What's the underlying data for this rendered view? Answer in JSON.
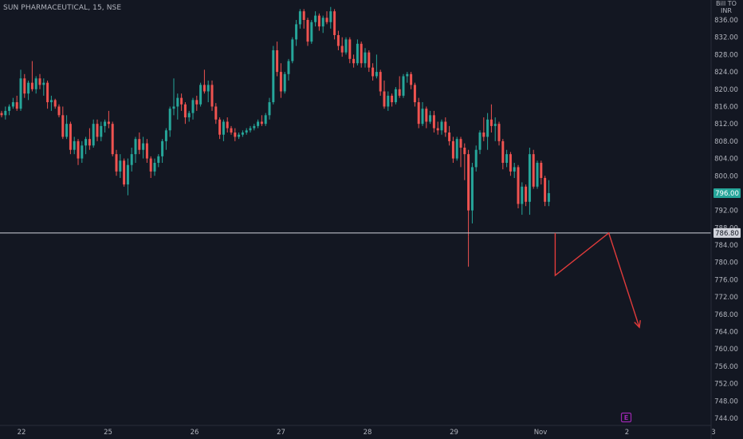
{
  "header": {
    "symbol_title": "SUN PHARMACEUTICAL, 15, NSE",
    "currency_top": "Bill TO",
    "currency": "INR"
  },
  "colors": {
    "background": "#131722",
    "up": "#26a69a",
    "down": "#ef5350",
    "axis_text": "#b2b5be",
    "horizontal_line": "#d1d4dc",
    "drawing": "#e03b3b",
    "badge": "#9c27b0"
  },
  "events_badge": "E",
  "chart_data": {
    "type": "candlestick",
    "title": "SUN PHARMACEUTICAL, 15, NSE",
    "ylabel": "INR",
    "ylim": [
      743,
      839
    ],
    "y_ticks": [
      836,
      832,
      828,
      824,
      820,
      816,
      812,
      808,
      804,
      800,
      796,
      792,
      788,
      784,
      780,
      776,
      772,
      768,
      764,
      760,
      756,
      752,
      748,
      744
    ],
    "x_tick_labels": [
      "22",
      "25",
      "26",
      "27",
      "28",
      "29",
      "Nov",
      "2",
      "3"
    ],
    "x_tick_positions": [
      0,
      25,
      50,
      75,
      100,
      125,
      150,
      175,
      200
    ],
    "last_price": "796.00",
    "horizontal_line_price": "786.80",
    "grid": false,
    "candles": [
      [
        814.5,
        815,
        813.5,
        814
      ],
      [
        814,
        816,
        813,
        815
      ],
      [
        815,
        816.5,
        814,
        816
      ],
      [
        816,
        818,
        815.5,
        817
      ],
      [
        817,
        818.5,
        815,
        815.5
      ],
      [
        815.5,
        824.5,
        815,
        822.5
      ],
      [
        822.5,
        823.5,
        818,
        819
      ],
      [
        819,
        822,
        817.5,
        821.5
      ],
      [
        821.5,
        826.5,
        819.5,
        820
      ],
      [
        820,
        823,
        819,
        822.5
      ],
      [
        822.5,
        823.5,
        820,
        821
      ],
      [
        821,
        822.5,
        818.5,
        821.5
      ],
      [
        821.5,
        822,
        815.5,
        817
      ],
      [
        817,
        818.5,
        815,
        817.5
      ],
      [
        817.5,
        817.8,
        815.5,
        816
      ],
      [
        816,
        816.5,
        813.5,
        814
      ],
      [
        814,
        816,
        808.5,
        809
      ],
      [
        809,
        814,
        808.5,
        812
      ],
      [
        812,
        812.5,
        805,
        806
      ],
      [
        806,
        809,
        805,
        808
      ],
      [
        808,
        808.5,
        802.5,
        804
      ],
      [
        804,
        808,
        803,
        807
      ],
      [
        807,
        809,
        805,
        808.5
      ],
      [
        808.5,
        811,
        806,
        807
      ],
      [
        807,
        813,
        806.5,
        812
      ],
      [
        812,
        813,
        808,
        809
      ],
      [
        809,
        812.5,
        808,
        811.5
      ],
      [
        811.5,
        813,
        810,
        812.5
      ],
      [
        812.5,
        815,
        811,
        812
      ],
      [
        812,
        812.5,
        804.5,
        805
      ],
      [
        805,
        806,
        800,
        801
      ],
      [
        801,
        805,
        799.5,
        803.5
      ],
      [
        803.5,
        804,
        797.5,
        798
      ],
      [
        798,
        804,
        795.5,
        802.5
      ],
      [
        802.5,
        806.5,
        801,
        805
      ],
      [
        805,
        809,
        803,
        808.5
      ],
      [
        808.5,
        810,
        805,
        806
      ],
      [
        806,
        809,
        804,
        807.5
      ],
      [
        807.5,
        808.5,
        803,
        804
      ],
      [
        804,
        804.5,
        799.5,
        801
      ],
      [
        801,
        804,
        800,
        803
      ],
      [
        803,
        805,
        802,
        804.5
      ],
      [
        804.5,
        808.5,
        803,
        808
      ],
      [
        808,
        811,
        806,
        810.5
      ],
      [
        810.5,
        816,
        809,
        815.5
      ],
      [
        815.5,
        822.5,
        814,
        816
      ],
      [
        816,
        819,
        813,
        818
      ],
      [
        818,
        819,
        815,
        816.5
      ],
      [
        816.5,
        817,
        812,
        813.5
      ],
      [
        813.5,
        815,
        812.5,
        814.5
      ],
      [
        814.5,
        818,
        813,
        817.5
      ],
      [
        817.5,
        818.5,
        815,
        816.5
      ],
      [
        816.5,
        821.5,
        816,
        821
      ],
      [
        821,
        824.5,
        819,
        819.5
      ],
      [
        819.5,
        822,
        817,
        821
      ],
      [
        821,
        822,
        815,
        816
      ],
      [
        816,
        816.8,
        812,
        813
      ],
      [
        813,
        813.5,
        808.5,
        809.5
      ],
      [
        809.5,
        813,
        808,
        812.5
      ],
      [
        812.5,
        813.5,
        810,
        811
      ],
      [
        811,
        811.5,
        809.5,
        810
      ],
      [
        810,
        811,
        808,
        809
      ],
      [
        809,
        810,
        808.5,
        809.5
      ],
      [
        809.5,
        810.5,
        809,
        810
      ],
      [
        810,
        811,
        809.5,
        810.5
      ],
      [
        810.5,
        811.5,
        810,
        811
      ],
      [
        811,
        812,
        810.5,
        811.5
      ],
      [
        811.5,
        813,
        811,
        812.5
      ],
      [
        812.5,
        814,
        811.5,
        812
      ],
      [
        812,
        814.5,
        811.5,
        814
      ],
      [
        814,
        818,
        813,
        817
      ],
      [
        817,
        830,
        816.5,
        829
      ],
      [
        829,
        831,
        823,
        824
      ],
      [
        824,
        826,
        818,
        819.5
      ],
      [
        819.5,
        824,
        819,
        823.5
      ],
      [
        823.5,
        827,
        822,
        826.5
      ],
      [
        826.5,
        832,
        826,
        831.5
      ],
      [
        831.5,
        836,
        830,
        835
      ],
      [
        835,
        838.5,
        834,
        838
      ],
      [
        838,
        838.5,
        834,
        836
      ],
      [
        836,
        836.5,
        830,
        831
      ],
      [
        831,
        836,
        830.5,
        835.5
      ],
      [
        835.5,
        838,
        834.5,
        837
      ],
      [
        837,
        837.5,
        833.5,
        834.5
      ],
      [
        834.5,
        837,
        833,
        836.5
      ],
      [
        836.5,
        838,
        835,
        835.5
      ],
      [
        835.5,
        839,
        834,
        838
      ],
      [
        838,
        838.5,
        831.5,
        832.5
      ],
      [
        832.5,
        833.5,
        829,
        830
      ],
      [
        830,
        832,
        827.5,
        828.5
      ],
      [
        828.5,
        832,
        828,
        831.5
      ],
      [
        831.5,
        832,
        826,
        827
      ],
      [
        827,
        828,
        825,
        826
      ],
      [
        826,
        831.5,
        825.5,
        830.5
      ],
      [
        830.5,
        831,
        825,
        826
      ],
      [
        826,
        829.5,
        825,
        828.5
      ],
      [
        828.5,
        829,
        824,
        825
      ],
      [
        825,
        826,
        822,
        823
      ],
      [
        823,
        828,
        822.5,
        824
      ],
      [
        824,
        824.5,
        818.5,
        819.5
      ],
      [
        819.5,
        822,
        815.5,
        816
      ],
      [
        816,
        819.5,
        815,
        818.5
      ],
      [
        818.5,
        819,
        816,
        817
      ],
      [
        817,
        820.5,
        816.5,
        820
      ],
      [
        820,
        823,
        818,
        818.5
      ],
      [
        818.5,
        823.5,
        818,
        823
      ],
      [
        823,
        824,
        821.5,
        823.5
      ],
      [
        823.5,
        824,
        820,
        821
      ],
      [
        821,
        821.5,
        816,
        817
      ],
      [
        817,
        818,
        811,
        812
      ],
      [
        812,
        817,
        811.5,
        815.5
      ],
      [
        815.5,
        816,
        811,
        812.5
      ],
      [
        812.5,
        815,
        812,
        814
      ],
      [
        814,
        815,
        810,
        811
      ],
      [
        811,
        812.5,
        809.5,
        810.5
      ],
      [
        810.5,
        813,
        809.5,
        812.5
      ],
      [
        812.5,
        813.5,
        809,
        810
      ],
      [
        810,
        811.5,
        807,
        808
      ],
      [
        808,
        809,
        803,
        804
      ],
      [
        804,
        809,
        803.5,
        808.5
      ],
      [
        808.5,
        809,
        802,
        806.5
      ],
      [
        806.5,
        807.5,
        799,
        805
      ],
      [
        805,
        806,
        786,
        792
      ],
      [
        792,
        803,
        789,
        802
      ],
      [
        802,
        807,
        801,
        806
      ],
      [
        806,
        810.5,
        805,
        810
      ],
      [
        810,
        813.5,
        808,
        809
      ],
      [
        809,
        814.5,
        806,
        813
      ],
      [
        813,
        816.5,
        810,
        811.5
      ],
      [
        811.5,
        813.5,
        808,
        812
      ],
      [
        812,
        812.5,
        807,
        808
      ],
      [
        808,
        808.5,
        801.5,
        803
      ],
      [
        803,
        806,
        802,
        805
      ],
      [
        805,
        805.5,
        800,
        801
      ],
      [
        801,
        803,
        799.5,
        802
      ],
      [
        802,
        802.5,
        792.5,
        793.5
      ],
      [
        793.5,
        798.5,
        791,
        797.5
      ],
      [
        797.5,
        798,
        793,
        794
      ],
      [
        794,
        806.5,
        791,
        805
      ],
      [
        805,
        806,
        797,
        797.5
      ],
      [
        797.5,
        803.5,
        797,
        803
      ],
      [
        803,
        803.5,
        798,
        799.5
      ],
      [
        799.5,
        800,
        793,
        794
      ],
      [
        794,
        799,
        793,
        796
      ]
    ],
    "spike_wick_low": 779,
    "projection_path": [
      [
        0,
        786.8
      ],
      [
        0,
        777
      ],
      [
        14,
        786.8
      ],
      [
        22,
        765
      ]
    ],
    "projection_note": "x in bars after the last candle"
  }
}
